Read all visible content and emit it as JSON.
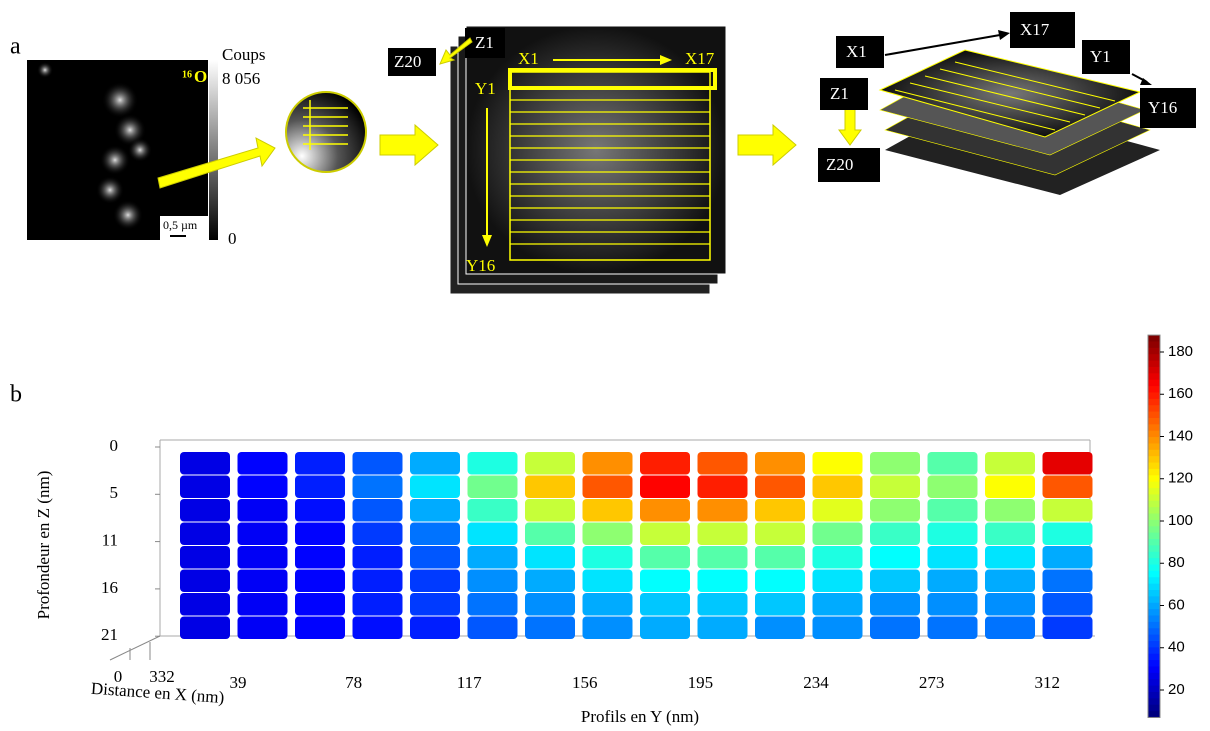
{
  "panel_a": {
    "label": "a",
    "image": {
      "element": "16",
      "element_symbol": "O",
      "scale_bar": "0,5 µm"
    },
    "colorbar": {
      "title": "Coups",
      "max": "8 056",
      "min": "0"
    },
    "stack": {
      "z_start": "Z1",
      "z_end": "Z20",
      "x_start": "X1",
      "x_end": "X17",
      "y_start": "Y1",
      "y_end": "Y16"
    },
    "planes": {
      "x_start": "X1",
      "x_end": "X17",
      "y_start": "Y1",
      "y_end": "Y16",
      "z_start": "Z1",
      "z_end": "Z20"
    }
  },
  "panel_b": {
    "label": "b",
    "y_label": "Profondeur en Z (nm)",
    "yticks": [
      0,
      5,
      11,
      16,
      21
    ],
    "x_label": "Distance en X (nm)",
    "xticks": [
      0,
      332
    ],
    "profile_label": "Profils en Y (nm)",
    "profile_ticks": [
      39,
      78,
      117,
      156,
      195,
      234,
      273,
      312
    ],
    "clim": [
      7,
      188
    ],
    "colorbar_ticks": [
      20,
      40,
      60,
      80,
      100,
      120,
      140,
      160,
      180
    ],
    "profiles": [
      [
        25,
        25,
        25,
        25,
        25,
        25,
        25,
        25
      ],
      [
        30,
        30,
        28,
        28,
        28,
        28,
        28,
        28
      ],
      [
        35,
        35,
        32,
        30,
        30,
        30,
        30,
        30
      ],
      [
        45,
        50,
        45,
        40,
        35,
        35,
        35,
        32
      ],
      [
        60,
        70,
        60,
        50,
        45,
        40,
        40,
        35
      ],
      [
        80,
        95,
        85,
        70,
        60,
        55,
        50,
        45
      ],
      [
        110,
        130,
        110,
        90,
        70,
        60,
        55,
        50
      ],
      [
        140,
        150,
        130,
        100,
        80,
        70,
        60,
        55
      ],
      [
        160,
        165,
        140,
        110,
        90,
        75,
        65,
        60
      ],
      [
        150,
        160,
        140,
        110,
        90,
        75,
        65,
        60
      ],
      [
        140,
        150,
        130,
        110,
        90,
        75,
        65,
        55
      ],
      [
        120,
        130,
        115,
        95,
        80,
        70,
        60,
        55
      ],
      [
        100,
        110,
        100,
        85,
        75,
        65,
        55,
        50
      ],
      [
        90,
        100,
        90,
        80,
        70,
        60,
        55,
        50
      ],
      [
        110,
        120,
        100,
        85,
        70,
        60,
        55,
        50
      ],
      [
        170,
        150,
        110,
        80,
        60,
        50,
        45,
        40
      ]
    ]
  }
}
